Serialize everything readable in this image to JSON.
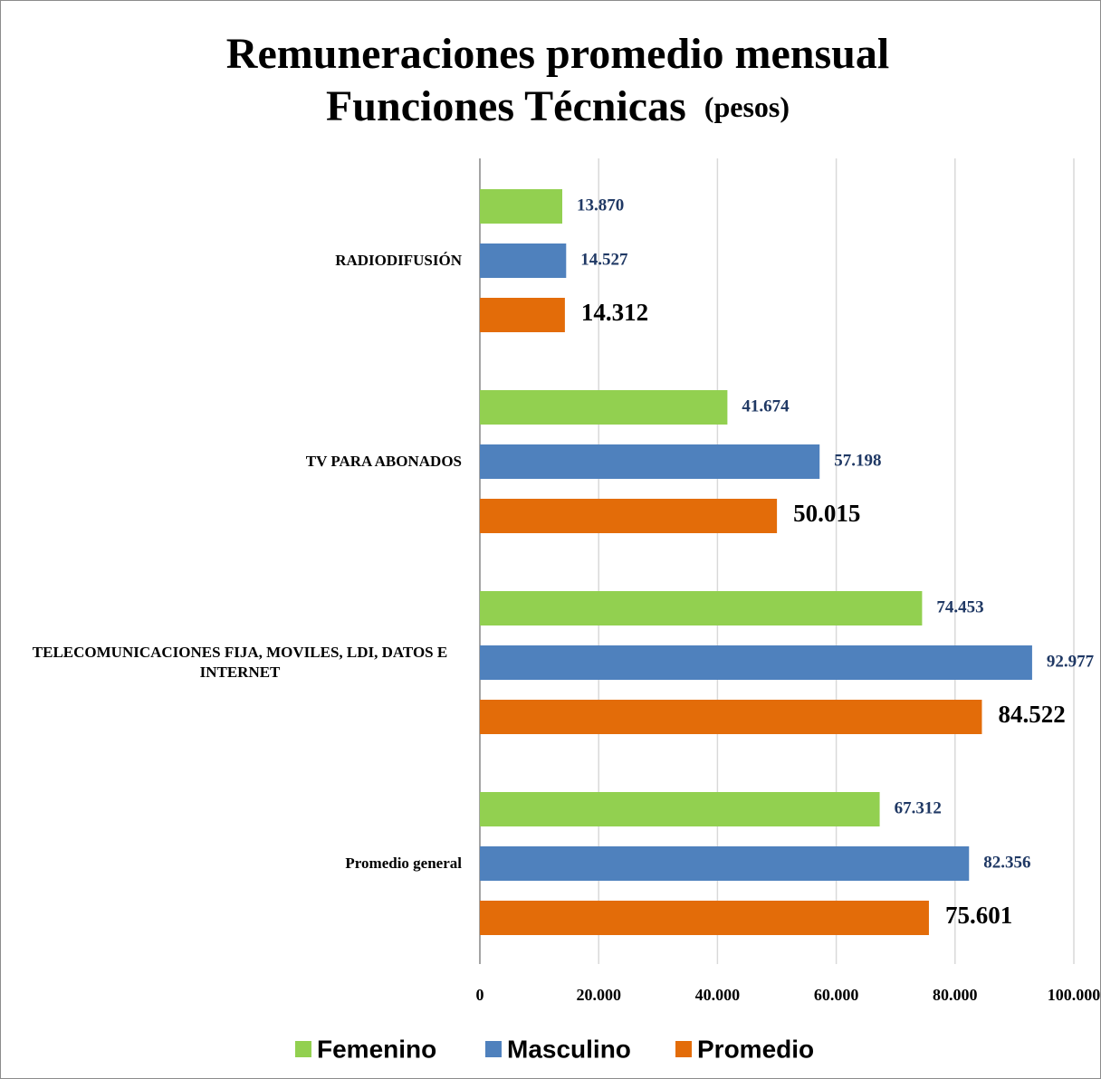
{
  "chart_data": {
    "type": "hbar",
    "title": [
      "Remuneraciones promedio mensual",
      "Funciones Técnicas"
    ],
    "title_note": "(pesos)",
    "categories": [
      "RADIODIFUSIÓN",
      "TV PARA ABONADOS",
      "TELECOMUNICACIONES FIJA, MOVILES, LDI, DATOS E INTERNET",
      "Promedio general"
    ],
    "series": [
      {
        "name": "Femenino",
        "color": "#92d050",
        "values": [
          13870,
          41674,
          74453,
          67312
        ],
        "value_labels": [
          "13.870",
          "41.674",
          "74.453",
          "67.312"
        ]
      },
      {
        "name": "Masculino",
        "color": "#4f81bd",
        "values": [
          14527,
          57198,
          92977,
          82356
        ],
        "value_labels": [
          "14.527",
          "57.198",
          "92.977",
          "82.356"
        ]
      },
      {
        "name": "Promedio",
        "color": "#e36c09",
        "values": [
          14312,
          50015,
          84522,
          75601
        ],
        "value_labels": [
          "14.312",
          "50.015",
          "84.522",
          "75.601"
        ]
      }
    ],
    "xlim": [
      0,
      100000
    ],
    "xticks": [
      0,
      {
        "value": 20000,
        "label": "20.000"
      },
      {
        "value": 40000,
        "label": "40.000"
      },
      {
        "value": 60000,
        "label": "60.000"
      },
      {
        "value": 80000,
        "label": "80.000"
      },
      {
        "value": 100000,
        "label": "100.000"
      }
    ],
    "grid": true,
    "legend": "bottom"
  }
}
